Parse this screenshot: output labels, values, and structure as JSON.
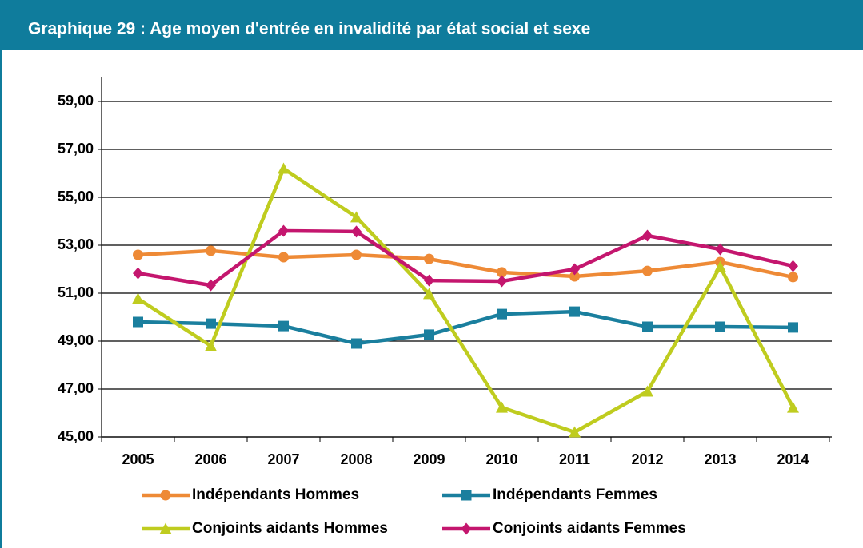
{
  "chart_data": {
    "type": "line",
    "title": "Graphique 29 : Age moyen d'entrée en invalidité par état social et sexe",
    "categories": [
      "2005",
      "2006",
      "2007",
      "2008",
      "2009",
      "2010",
      "2011",
      "2012",
      "2013",
      "2014"
    ],
    "series": [
      {
        "name": "Indépendants Hommes",
        "color": "#ee8a36",
        "marker": "circle",
        "values": [
          52.6,
          52.77,
          52.5,
          52.6,
          52.43,
          51.87,
          51.7,
          51.93,
          52.3,
          51.67
        ]
      },
      {
        "name": "Indépendants Femmes",
        "color": "#1a7f9e",
        "marker": "square",
        "values": [
          49.8,
          49.73,
          49.63,
          48.9,
          49.27,
          50.13,
          50.23,
          49.6,
          49.6,
          49.57
        ]
      },
      {
        "name": "Conjoints aidants Hommes",
        "color": "#bfcc1f",
        "marker": "triangle",
        "values": [
          50.77,
          48.8,
          56.2,
          54.17,
          50.97,
          46.23,
          45.2,
          46.9,
          52.1,
          46.23
        ]
      },
      {
        "name": "Conjoints aidants Femmes",
        "color": "#c4166e",
        "marker": "diamond",
        "values": [
          51.83,
          51.33,
          53.6,
          53.57,
          51.53,
          51.5,
          52.0,
          53.4,
          52.83,
          52.13
        ]
      }
    ],
    "ylim": [
      45,
      60
    ],
    "yticks": [
      {
        "value": 45,
        "label": "45,00"
      },
      {
        "value": 47,
        "label": "47,00"
      },
      {
        "value": 49,
        "label": "49,00"
      },
      {
        "value": 51,
        "label": "51,00"
      },
      {
        "value": 53,
        "label": "53,00"
      },
      {
        "value": 55,
        "label": "55,00"
      },
      {
        "value": 57,
        "label": "57,00"
      },
      {
        "value": 59,
        "label": "59,00"
      }
    ],
    "grid": true
  }
}
